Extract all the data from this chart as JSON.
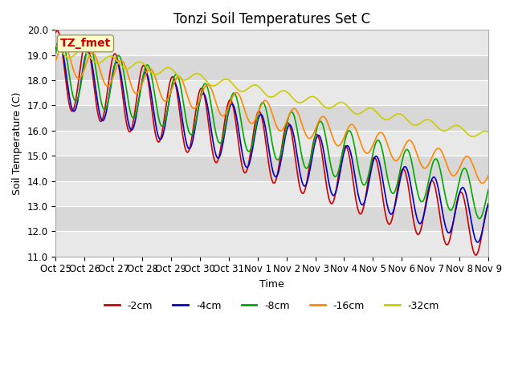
{
  "title": "Tonzi Soil Temperatures Set C",
  "xlabel": "Time",
  "ylabel": "Soil Temperature (C)",
  "ylim": [
    11.0,
    20.0
  ],
  "yticks": [
    11.0,
    12.0,
    13.0,
    14.0,
    15.0,
    16.0,
    17.0,
    18.0,
    19.0,
    20.0
  ],
  "xtick_labels": [
    "Oct 25",
    "Oct 26",
    "Oct 27",
    "Oct 28",
    "Oct 29",
    "Oct 30",
    "Oct 31",
    "Nov 1",
    "Nov 2",
    "Nov 3",
    "Nov 4",
    "Nov 5",
    "Nov 6",
    "Nov 7",
    "Nov 8",
    "Nov 9"
  ],
  "series": {
    "-2cm": {
      "color": "#cc0000",
      "linewidth": 1.2
    },
    "-4cm": {
      "color": "#0000cc",
      "linewidth": 1.2
    },
    "-8cm": {
      "color": "#00aa00",
      "linewidth": 1.2
    },
    "-16cm": {
      "color": "#ff8800",
      "linewidth": 1.2
    },
    "-32cm": {
      "color": "#cccc00",
      "linewidth": 1.2
    }
  },
  "annotation_text": "TZ_fmet",
  "annotation_color": "#cc0000",
  "annotation_bg": "#ffffcc",
  "annotation_border": "#999966",
  "background_fig": "#ffffff",
  "grid_color": "#ffffff",
  "band_colors": [
    "#e8e8e8",
    "#d8d8d8"
  ],
  "title_fontsize": 12,
  "axis_fontsize": 9,
  "tick_fontsize": 8.5
}
